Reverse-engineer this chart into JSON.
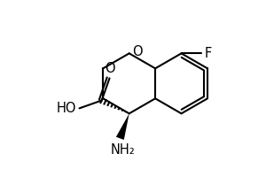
{
  "bg_color": "#ffffff",
  "line_color": "#000000",
  "line_width": 1.5,
  "font_size": 10.5,
  "fig_width": 3.0,
  "fig_height": 1.91,
  "dpi": 100,
  "xlim": [
    0,
    10
  ],
  "ylim": [
    0,
    6.37
  ]
}
